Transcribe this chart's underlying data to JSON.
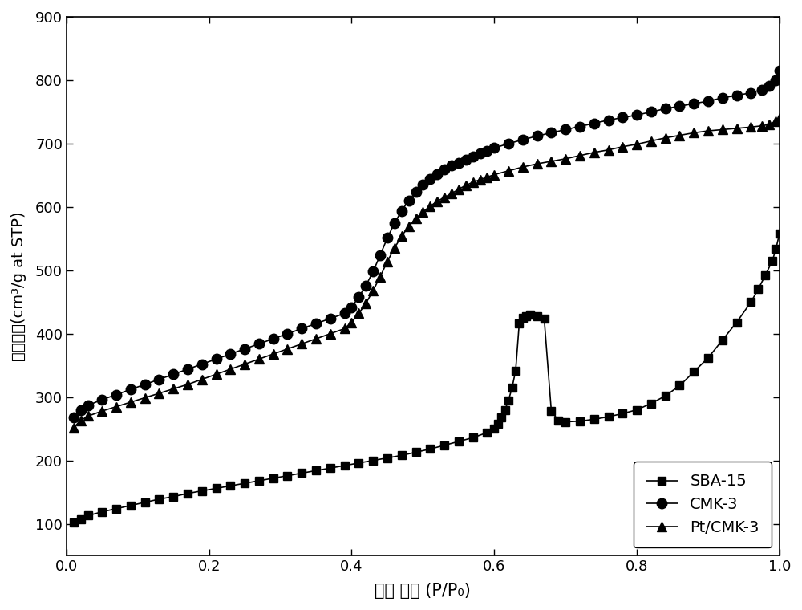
{
  "title": "",
  "xlabel": "相对 压力 (P/P₀)",
  "ylabel": "吸附体积(cm³/g at STP)",
  "xlim": [
    0.0,
    1.0
  ],
  "ylim": [
    50,
    900
  ],
  "yticks": [
    100,
    200,
    300,
    400,
    500,
    600,
    700,
    800,
    900
  ],
  "xticks": [
    0.0,
    0.2,
    0.4,
    0.6,
    0.8,
    1.0
  ],
  "background_color": "#ffffff",
  "series": {
    "SBA-15": {
      "color": "#000000",
      "marker": "s",
      "markersize": 7,
      "linewidth": 1.2,
      "x": [
        0.01,
        0.02,
        0.03,
        0.05,
        0.07,
        0.09,
        0.11,
        0.13,
        0.15,
        0.17,
        0.19,
        0.21,
        0.23,
        0.25,
        0.27,
        0.29,
        0.31,
        0.33,
        0.35,
        0.37,
        0.39,
        0.41,
        0.43,
        0.45,
        0.47,
        0.49,
        0.51,
        0.53,
        0.55,
        0.57,
        0.59,
        0.6,
        0.605,
        0.61,
        0.615,
        0.62,
        0.625,
        0.63,
        0.635,
        0.64,
        0.645,
        0.65,
        0.66,
        0.67,
        0.68,
        0.69,
        0.7,
        0.72,
        0.74,
        0.76,
        0.78,
        0.8,
        0.82,
        0.84,
        0.86,
        0.88,
        0.9,
        0.92,
        0.94,
        0.96,
        0.97,
        0.98,
        0.99,
        0.995,
        1.0
      ],
      "y": [
        102,
        107,
        113,
        119,
        124,
        129,
        134,
        139,
        143,
        148,
        152,
        156,
        160,
        164,
        168,
        172,
        176,
        180,
        184,
        188,
        192,
        196,
        200,
        204,
        208,
        213,
        218,
        224,
        230,
        236,
        244,
        250,
        258,
        268,
        280,
        295,
        315,
        342,
        416,
        425,
        428,
        430,
        428,
        424,
        278,
        263,
        261,
        262,
        265,
        269,
        274,
        280,
        290,
        302,
        318,
        340,
        362,
        390,
        418,
        450,
        470,
        492,
        515,
        534,
        558
      ]
    },
    "CMK-3": {
      "color": "#000000",
      "marker": "o",
      "markersize": 9,
      "linewidth": 1.2,
      "x": [
        0.01,
        0.02,
        0.03,
        0.05,
        0.07,
        0.09,
        0.11,
        0.13,
        0.15,
        0.17,
        0.19,
        0.21,
        0.23,
        0.25,
        0.27,
        0.29,
        0.31,
        0.33,
        0.35,
        0.37,
        0.39,
        0.4,
        0.41,
        0.42,
        0.43,
        0.44,
        0.45,
        0.46,
        0.47,
        0.48,
        0.49,
        0.5,
        0.51,
        0.52,
        0.53,
        0.54,
        0.55,
        0.56,
        0.57,
        0.58,
        0.59,
        0.6,
        0.62,
        0.64,
        0.66,
        0.68,
        0.7,
        0.72,
        0.74,
        0.76,
        0.78,
        0.8,
        0.82,
        0.84,
        0.86,
        0.88,
        0.9,
        0.92,
        0.94,
        0.96,
        0.975,
        0.985,
        0.995,
        1.0
      ],
      "y": [
        268,
        279,
        287,
        296,
        304,
        312,
        320,
        328,
        336,
        344,
        352,
        360,
        368,
        376,
        384,
        392,
        400,
        408,
        416,
        424,
        432,
        442,
        458,
        476,
        498,
        524,
        551,
        574,
        594,
        610,
        624,
        635,
        644,
        652,
        659,
        665,
        670,
        675,
        680,
        685,
        689,
        693,
        700,
        706,
        712,
        717,
        722,
        727,
        732,
        737,
        741,
        745,
        750,
        755,
        759,
        763,
        767,
        772,
        776,
        780,
        785,
        791,
        800,
        815
      ]
    },
    "Pt/CMK-3": {
      "color": "#000000",
      "marker": "^",
      "markersize": 8,
      "linewidth": 1.2,
      "x": [
        0.01,
        0.02,
        0.03,
        0.05,
        0.07,
        0.09,
        0.11,
        0.13,
        0.15,
        0.17,
        0.19,
        0.21,
        0.23,
        0.25,
        0.27,
        0.29,
        0.31,
        0.33,
        0.35,
        0.37,
        0.39,
        0.4,
        0.41,
        0.42,
        0.43,
        0.44,
        0.45,
        0.46,
        0.47,
        0.48,
        0.49,
        0.5,
        0.51,
        0.52,
        0.53,
        0.54,
        0.55,
        0.56,
        0.57,
        0.58,
        0.59,
        0.6,
        0.62,
        0.64,
        0.66,
        0.68,
        0.7,
        0.72,
        0.74,
        0.76,
        0.78,
        0.8,
        0.82,
        0.84,
        0.86,
        0.88,
        0.9,
        0.92,
        0.94,
        0.96,
        0.975,
        0.985,
        0.995,
        1.0
      ],
      "y": [
        252,
        263,
        270,
        278,
        285,
        292,
        299,
        306,
        313,
        320,
        328,
        336,
        344,
        352,
        360,
        368,
        376,
        384,
        392,
        400,
        408,
        418,
        432,
        448,
        468,
        490,
        514,
        535,
        554,
        569,
        582,
        592,
        601,
        609,
        615,
        621,
        628,
        634,
        639,
        643,
        647,
        651,
        657,
        663,
        668,
        672,
        676,
        681,
        686,
        690,
        695,
        699,
        704,
        709,
        713,
        717,
        720,
        722,
        724,
        726,
        728,
        730,
        735,
        740
      ]
    }
  },
  "legend": {
    "loc": "lower right",
    "fontsize": 14,
    "frameon": true,
    "entries": [
      "SBA-15",
      "CMK-3",
      "Pt/CMK-3"
    ]
  }
}
